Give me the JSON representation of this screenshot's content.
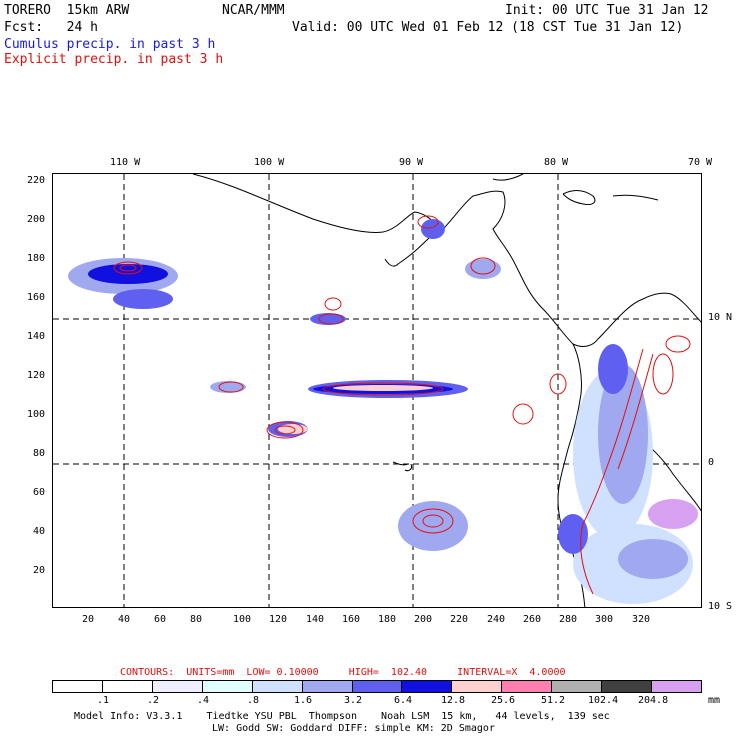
{
  "header": {
    "model_name": "TORERO  15km ARW",
    "org": "NCAR/MMM",
    "init": "Init: 00 UTC Tue 31 Jan 12",
    "fcst": "Fcst:   24 h",
    "valid": "Valid: 00 UTC Wed 01 Feb 12 (18 CST Tue 31 Jan 12)",
    "cumulus": "Cumulus precip. in past 3 h",
    "explicit": "Explicit precip. in past 3 h"
  },
  "map": {
    "lon_labels": [
      "110 W",
      "100 W",
      "90 W",
      "80 W",
      "70 W"
    ],
    "lat_labels": [
      "10 N",
      "0",
      "10 S"
    ],
    "x_ticks": [
      "20",
      "40",
      "60",
      "80",
      "100",
      "120",
      "140",
      "160",
      "180",
      "200",
      "220",
      "240",
      "260",
      "280",
      "300",
      "320"
    ],
    "y_ticks": [
      "220",
      "200",
      "180",
      "160",
      "140",
      "120",
      "100",
      "80",
      "60",
      "40",
      "20"
    ]
  },
  "legend": {
    "contours": "CONTOURS:  UNITS=mm  LOW= 0.10000     HIGH=  102.40     INTERVAL=X  4.0000",
    "bar_labels": [
      ".1",
      ".2",
      ".4",
      ".8",
      "1.6",
      "3.2",
      "6.4",
      "12.8",
      "25.6",
      "51.2",
      "102.4",
      "204.8"
    ],
    "units": "mm",
    "colors": [
      "#ffffff",
      "#ffffff",
      "#eeeeff",
      "#e0ffff",
      "#d0e0ff",
      "#a0a8f0",
      "#6060f0",
      "#1010e0",
      "#ffd0d0",
      "#ff80b0",
      "#b0b0b0",
      "#404040",
      "#d8a0f0"
    ]
  },
  "footer": {
    "line1": "Model Info: V3.3.1    Tiedtke YSU PBL  Thompson    Noah LSM  15 km,   44 levels,  139 sec",
    "line2": "LW: Godd SW: Goddard DIFF: simple KM: 2D Smagor"
  }
}
